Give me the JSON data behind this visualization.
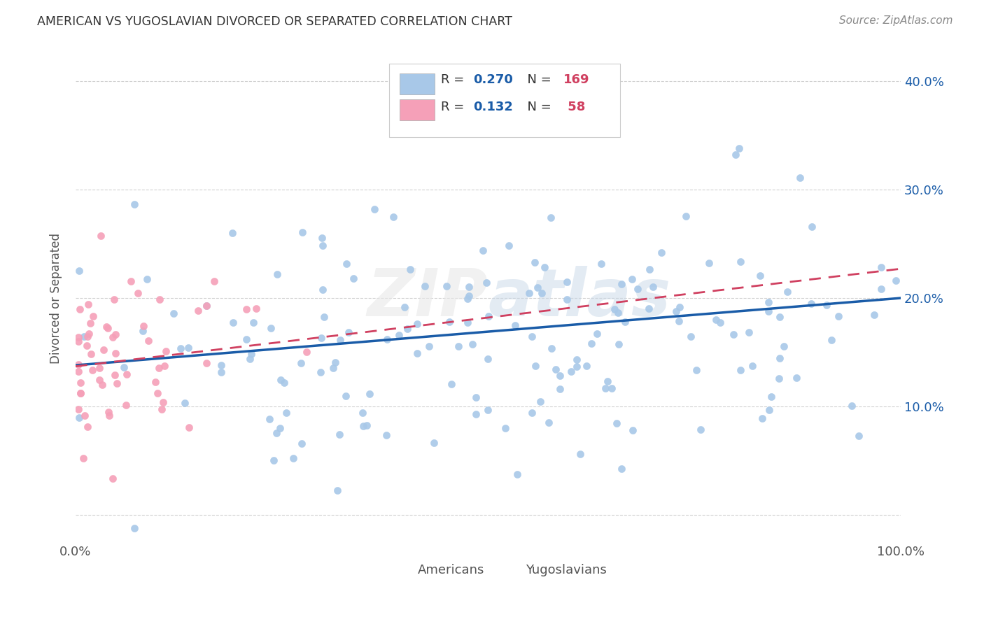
{
  "title": "AMERICAN VS YUGOSLAVIAN DIVORCED OR SEPARATED CORRELATION CHART",
  "source": "Source: ZipAtlas.com",
  "ylabel": "Divorced or Separated",
  "r_american": 0.27,
  "n_american": 169,
  "r_yugoslavian": 0.132,
  "n_yugoslavian": 58,
  "american_color": "#a8c8e8",
  "yugoslavian_color": "#f5a0b8",
  "trend_american_color": "#1a5ca8",
  "trend_yugoslav_color": "#d04060",
  "background_color": "#ffffff",
  "grid_color": "#cccccc",
  "xlim": [
    0.0,
    1.0
  ],
  "ylim": [
    -0.025,
    0.425
  ],
  "legend_r_color": "#1a5ca8",
  "legend_n_color": "#d04060",
  "legend_label_color": "#333333"
}
